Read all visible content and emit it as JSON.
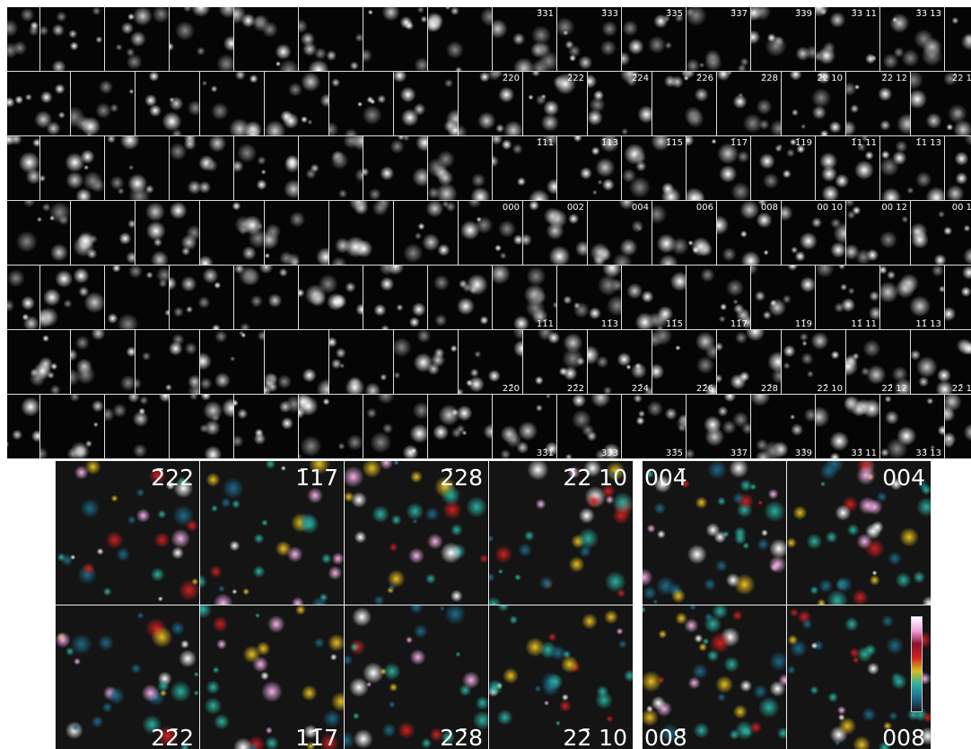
{
  "grid": {
    "rows": [
      {
        "labels": [
          "3̄31",
          "3̄33",
          "3̄35",
          "3̄37",
          "3̄39",
          "3̄3 11",
          "3̄3 13"
        ]
      },
      {
        "labels": [
          "2̄20",
          "2̄22",
          "2̄24",
          "2̄26",
          "2̄28",
          "2̄2 10",
          "2̄2 12",
          "2̄2 1"
        ]
      },
      {
        "labels": [
          "1̄11",
          "1̄13",
          "1̄15",
          "1̄17",
          "1̄19",
          "1̄1 11",
          "1̄1 13"
        ]
      },
      {
        "labels": [
          "000",
          "002",
          "004",
          "006",
          "008",
          "00 10",
          "00 12",
          "00 1"
        ]
      },
      {
        "labels": [
          "11̄1",
          "11̄3",
          "11̄5",
          "11̄7",
          "11̄9",
          "11̄ 11",
          "11̄ 13"
        ]
      },
      {
        "labels": [
          "22̄0",
          "22̄2",
          "22̄4",
          "22̄6",
          "22̄8",
          "22̄ 10",
          "22̄ 12",
          "22̄ 1"
        ]
      },
      {
        "labels": [
          "33̄1",
          "33̄3",
          "33̄5",
          "33̄7",
          "33̄9",
          "33̄ 11",
          "33̄ 13"
        ]
      }
    ]
  },
  "detail_left": {
    "top": [
      "2̄22",
      "1̄17",
      "2̄28",
      "2̄2 10"
    ],
    "bottom": [
      "22̄2",
      "11̄7",
      "22̄8",
      "22̄ 10"
    ]
  },
  "detail_right": {
    "top": [
      "004̄",
      "004"
    ],
    "bottom": [
      "008̄",
      "008"
    ]
  }
}
